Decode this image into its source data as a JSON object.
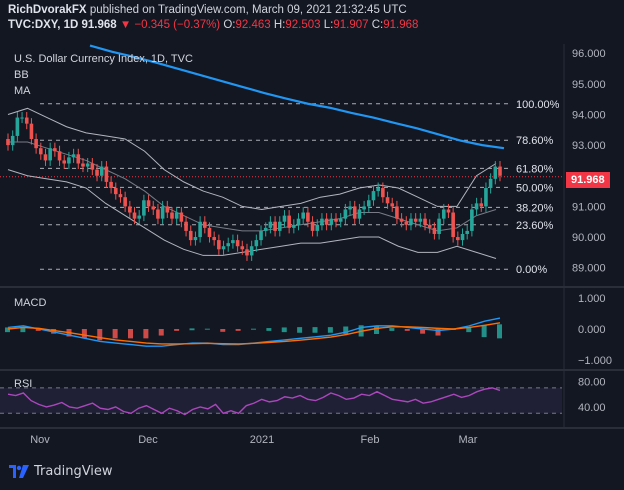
{
  "header": {
    "user": "RichDvorakFX",
    "published": "published on TradingView.com, March 09, 2021 21:32:45 UTC",
    "symbol": "TVC:DXY, 1D",
    "last": "91.968",
    "change": "▼ −0.345 (−0.37%)",
    "o_label": "O:",
    "o_val": "92.463",
    "h_label": "H:",
    "h_val": "92.503",
    "l_label": "L:",
    "l_val": "91.907",
    "c_label": "C:",
    "c_val": "91.968"
  },
  "main_pane": {
    "title": "U.S. Dollar Currency Index, 1D, TVC",
    "indicators": [
      "BB",
      "MA"
    ],
    "last_price_tag": "91.968",
    "fib_levels": [
      {
        "label": "100.00%",
        "value": 94.35
      },
      {
        "label": "78.60%",
        "value": 93.16
      },
      {
        "label": "61.80%",
        "value": 92.24
      },
      {
        "label": "50.00%",
        "value": 91.62
      },
      {
        "label": "38.20%",
        "value": 90.97
      },
      {
        "label": "23.60%",
        "value": 90.4
      },
      {
        "label": "0.00%",
        "value": 88.95
      }
    ]
  },
  "macd_pane": {
    "title": "MACD"
  },
  "rsi_pane": {
    "title": "RSI"
  },
  "branding": {
    "logo_text": "TradingView"
  },
  "colors": {
    "background": "#131722",
    "up": "#26a69a",
    "down": "#ef5350",
    "ma": "#2196f3",
    "bb": "#b2b5be",
    "macd": "#2196f3",
    "signal": "#ff6d00",
    "rsi": "#ab47bc",
    "accent_red": "#f23645"
  },
  "chart_data": [
    {
      "type": "candlestick",
      "title": "U.S. Dollar Currency Index, 1D, TVC",
      "x_ticks": [
        "Nov",
        "Dec",
        "2021",
        "Feb",
        "Mar"
      ],
      "y_ticks": [
        96.0,
        95.0,
        94.0,
        93.0,
        92.0,
        91.0,
        90.0,
        89.0
      ],
      "ylim": [
        88.5,
        96.3
      ],
      "close_series": [
        93.0,
        93.3,
        93.9,
        93.9,
        93.7,
        93.2,
        92.9,
        92.7,
        92.5,
        92.9,
        92.8,
        92.5,
        92.4,
        92.6,
        92.7,
        92.4,
        92.3,
        92.4,
        92.2,
        92.0,
        92.3,
        91.8,
        91.6,
        91.4,
        91.3,
        91.0,
        90.8,
        90.6,
        90.7,
        91.2,
        91.0,
        90.9,
        90.6,
        91.0,
        90.8,
        90.6,
        90.8,
        90.5,
        90.2,
        89.9,
        90.0,
        90.5,
        90.3,
        90.0,
        89.9,
        89.6,
        89.7,
        89.8,
        89.9,
        89.7,
        89.6,
        89.4,
        89.7,
        89.9,
        90.2,
        90.3,
        90.5,
        90.2,
        90.5,
        90.7,
        90.3,
        90.4,
        90.6,
        90.8,
        90.5,
        90.2,
        90.4,
        90.6,
        90.4,
        90.6,
        90.5,
        90.6,
        90.9,
        91.0,
        90.6,
        90.9,
        91.0,
        91.2,
        91.5,
        91.6,
        91.3,
        91.1,
        91.0,
        90.6,
        90.5,
        90.4,
        90.6,
        90.5,
        90.6,
        90.4,
        90.3,
        90.1,
        90.6,
        90.9,
        90.8,
        90.0,
        89.9,
        90.1,
        90.2,
        90.9,
        91.1,
        91.0,
        91.6,
        91.9,
        92.3,
        92.0
      ],
      "ma_series": [
        96.25,
        96.05,
        95.88,
        95.7,
        95.5,
        95.3,
        95.1,
        94.9,
        94.7,
        94.52,
        94.35,
        94.22,
        94.05,
        93.9,
        93.72,
        93.55,
        93.35,
        93.15,
        93.0,
        92.9
      ],
      "ma_x_start": 4,
      "ma_x_step": 5.2,
      "bb_upper": [
        94.0,
        94.2,
        93.9,
        93.6,
        93.4,
        93.3,
        93.2,
        92.8,
        92.2,
        91.8,
        91.5,
        91.3,
        91.0,
        90.9,
        91.0,
        91.1,
        91.3,
        91.4,
        91.6,
        91.7,
        91.6,
        91.3,
        91.0,
        91.0,
        92.0,
        92.4
      ],
      "bb_lower": [
        92.2,
        92.0,
        91.9,
        91.8,
        91.6,
        91.1,
        90.7,
        90.3,
        89.9,
        89.6,
        89.4,
        89.4,
        89.5,
        89.6,
        89.7,
        89.8,
        89.8,
        89.9,
        90.0,
        90.0,
        89.7,
        89.5,
        89.5,
        89.7,
        89.5,
        89.3
      ],
      "bb_mid": [
        93.1,
        93.1,
        92.9,
        92.7,
        92.5,
        92.2,
        91.9,
        91.5,
        91.0,
        90.7,
        90.4,
        90.3,
        90.2,
        90.2,
        90.3,
        90.4,
        90.5,
        90.6,
        90.8,
        90.8,
        90.6,
        90.4,
        90.2,
        90.3,
        90.7,
        90.9
      ]
    },
    {
      "type": "line",
      "title": "MACD",
      "y_ticks": [
        1.0,
        0.0,
        -1.0
      ],
      "ylim": [
        -1.25,
        1.25
      ],
      "macd_series": [
        0.05,
        0.1,
        0.0,
        -0.1,
        -0.2,
        -0.3,
        -0.4,
        -0.45,
        -0.5,
        -0.55,
        -0.55,
        -0.5,
        -0.45,
        -0.45,
        -0.5,
        -0.5,
        -0.45,
        -0.4,
        -0.35,
        -0.3,
        -0.25,
        -0.2,
        -0.1,
        0.05,
        0.1,
        0.1,
        0.05,
        0.0,
        -0.05,
        0.0,
        0.1,
        0.25,
        0.35
      ],
      "signal_series": [
        0.0,
        0.05,
        0.02,
        -0.05,
        -0.12,
        -0.2,
        -0.28,
        -0.35,
        -0.4,
        -0.45,
        -0.48,
        -0.48,
        -0.47,
        -0.46,
        -0.47,
        -0.48,
        -0.46,
        -0.43,
        -0.4,
        -0.36,
        -0.31,
        -0.26,
        -0.18,
        -0.07,
        0.02,
        0.07,
        0.07,
        0.05,
        0.02,
        0.0,
        0.05,
        0.12,
        0.2
      ]
    },
    {
      "type": "line",
      "title": "RSI",
      "y_ticks": [
        80.0,
        40.0
      ],
      "ylim": [
        10,
        95
      ],
      "band": [
        30,
        70
      ],
      "rsi_series": [
        60,
        58,
        62,
        50,
        44,
        40,
        43,
        47,
        40,
        38,
        42,
        46,
        38,
        36,
        40,
        33,
        30,
        38,
        42,
        36,
        30,
        38,
        34,
        28,
        36,
        40,
        37,
        44,
        30,
        34,
        30,
        42,
        46,
        52,
        48,
        50,
        56,
        54,
        58,
        52,
        50,
        55,
        62,
        58,
        52,
        54,
        60,
        58,
        64,
        58,
        52,
        50,
        48,
        52,
        46,
        48,
        52,
        56,
        60,
        55,
        58,
        64,
        68,
        70,
        66
      ]
    }
  ]
}
